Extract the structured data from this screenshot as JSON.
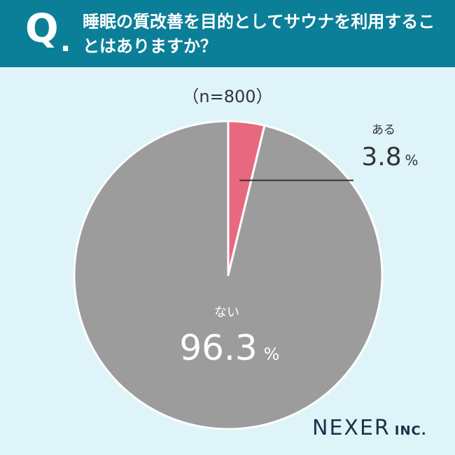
{
  "question": {
    "badge": "Q",
    "dot": ".",
    "text": "睡眠の質改善を目的としてサウナを利用することはありますか？"
  },
  "sample_size": "（n=800）",
  "colors": {
    "header": "#0c7f98",
    "background": "#def4f8",
    "yes": "#e8697f",
    "no": "#9c9c9c",
    "leader": "#333333"
  },
  "chart_data": {
    "type": "pie",
    "start": "12 o'clock",
    "direction": "clockwise",
    "slices": [
      {
        "label": "ある",
        "value": 3.8,
        "display_value": "3.8",
        "unit": "%"
      },
      {
        "label": "ない",
        "value": 96.3,
        "display_value": "96.3",
        "unit": "%"
      }
    ]
  },
  "brand": {
    "name": "NEXER",
    "suffix": "INC."
  }
}
